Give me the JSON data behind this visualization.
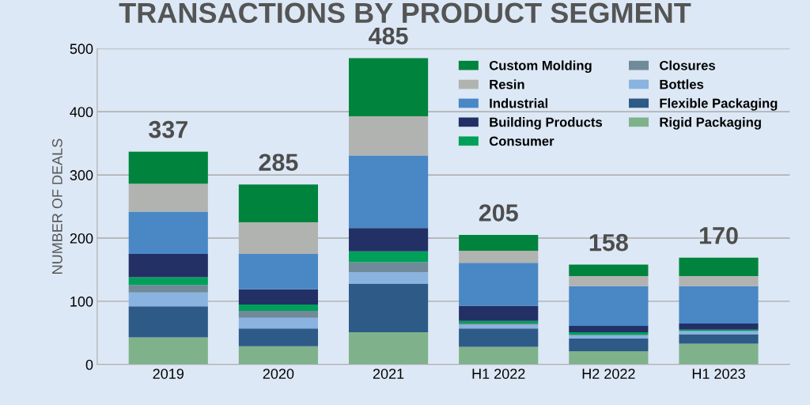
{
  "chart_data": {
    "type": "bar",
    "stacked": true,
    "title": "TRANSACTIONS BY PRODUCT SEGMENT",
    "ylabel": "NUMBER OF DEALS",
    "categories": [
      "2019",
      "2020",
      "2021",
      "H1 2022",
      "H2 2022",
      "H1 2023"
    ],
    "series": [
      {
        "name": "Rigid Packaging",
        "color": "#7fb28a",
        "values": [
          43,
          29,
          51,
          28,
          21,
          33
        ]
      },
      {
        "name": "Flexible Packaging",
        "color": "#2e5a88",
        "values": [
          49,
          28,
          77,
          29,
          20,
          15
        ]
      },
      {
        "name": "Bottles",
        "color": "#8ab3e0",
        "values": [
          22,
          17,
          18,
          6,
          5,
          5
        ]
      },
      {
        "name": "Closures",
        "color": "#708a99",
        "values": [
          12,
          11,
          16,
          2,
          1,
          null
        ]
      },
      {
        "name": "Consumer",
        "color": "#00a05a",
        "values": [
          12,
          10,
          17,
          4,
          4,
          2
        ]
      },
      {
        "name": "Building Products",
        "color": "#223066",
        "values": [
          37,
          24,
          37,
          24,
          10,
          10
        ]
      },
      {
        "name": "Industrial",
        "color": "#4a87c5",
        "values": [
          67,
          56,
          115,
          68,
          63,
          59
        ]
      },
      {
        "name": "Resin",
        "color": "#b1b3b0",
        "values": [
          44,
          50,
          62,
          19,
          16,
          16
        ]
      },
      {
        "name": "Custom Molding",
        "color": "#00843d",
        "values": [
          51,
          60,
          92,
          25,
          18,
          29
        ]
      }
    ],
    "totals": [
      "337",
      "285",
      "485",
      "205",
      "158",
      "170"
    ],
    "ylim": [
      0,
      500
    ],
    "yticks": [
      0,
      100,
      200,
      300,
      400,
      500
    ],
    "grid": "y",
    "legend": "top right"
  }
}
